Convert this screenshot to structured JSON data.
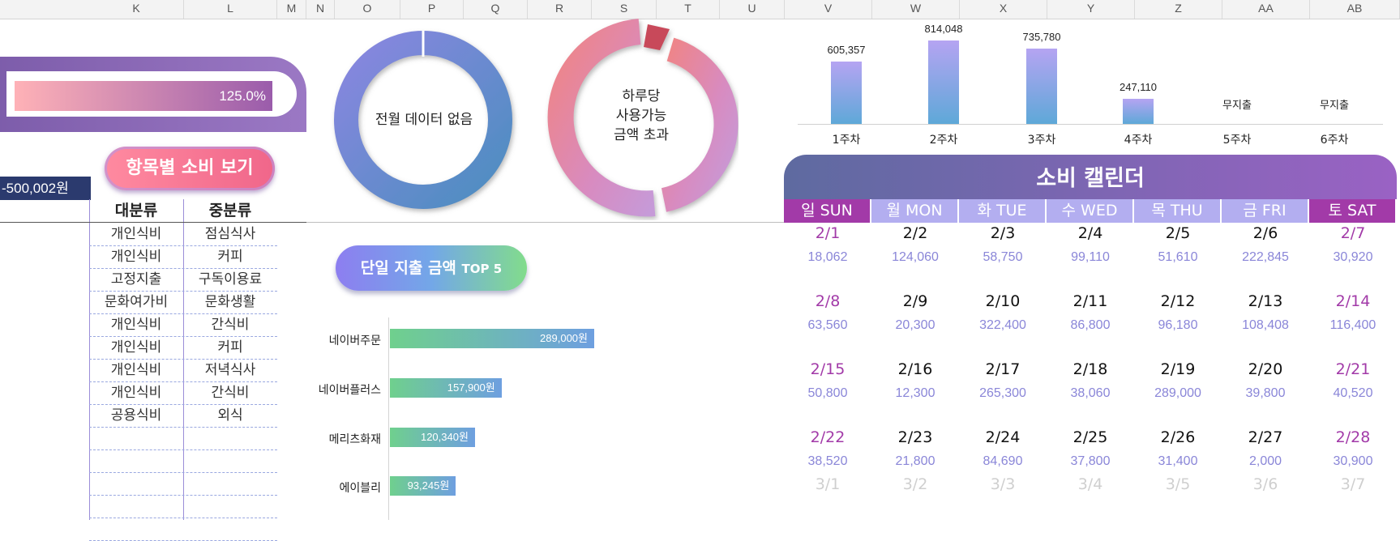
{
  "columns": [
    "K",
    "L",
    "M",
    "N",
    "O",
    "P",
    "Q",
    "R",
    "S",
    "T",
    "U",
    "V",
    "W",
    "X",
    "Y",
    "Z",
    "AA",
    "AB"
  ],
  "budget_rate": "125.0%",
  "category_button": "항목별 소비 보기",
  "remaining_amount": "-500,002원",
  "category_table": {
    "headers": [
      "대분류",
      "중분류"
    ],
    "rows": [
      [
        "개인식비",
        "점심식사"
      ],
      [
        "개인식비",
        "커피"
      ],
      [
        "고정지출",
        "구독이용료"
      ],
      [
        "문화여가비",
        "문화생활"
      ],
      [
        "개인식비",
        "간식비"
      ],
      [
        "개인식비",
        "커피"
      ],
      [
        "개인식비",
        "저녁식사"
      ],
      [
        "개인식비",
        "간식비"
      ],
      [
        "공용식비",
        "외식"
      ]
    ]
  },
  "donut_prev_month": "전월 데이터 없음",
  "donut_daily": {
    "line1": "하루당",
    "line2": "사용가능",
    "line3": "금액 초과"
  },
  "top5": {
    "title": "단일 지출 금액",
    "title_suffix": "TOP 5",
    "items": [
      {
        "name": "네이버주문",
        "amount": 289000,
        "label": "289,000원"
      },
      {
        "name": "네이버플러스",
        "amount": 157900,
        "label": "157,900원"
      },
      {
        "name": "메리츠화재",
        "amount": 120340,
        "label": "120,340원"
      },
      {
        "name": "에이블리",
        "amount": 93245,
        "label": "93,245원"
      }
    ]
  },
  "chart_data": {
    "type": "bar",
    "categories": [
      "1주차",
      "2주차",
      "3주차",
      "4주차",
      "5주차",
      "6주차"
    ],
    "values": [
      605357,
      814048,
      735780,
      247110,
      0,
      0
    ],
    "data_labels": [
      "605,357",
      "814,048",
      "735,780",
      "247,110",
      "무지출",
      "무지출"
    ],
    "ylim": [
      0,
      814048
    ]
  },
  "calendar": {
    "title": "소비 캘린더",
    "days": [
      {
        "label": "일 SUN",
        "color": "#a23aa8"
      },
      {
        "label": "월 MON",
        "color": "#b3aef0"
      },
      {
        "label": "화 TUE",
        "color": "#b3aef0"
      },
      {
        "label": "수 WED",
        "color": "#b3aef0"
      },
      {
        "label": "목 THU",
        "color": "#b3aef0"
      },
      {
        "label": "금 FRI",
        "color": "#b3aef0"
      },
      {
        "label": "토 SAT",
        "color": "#a23aa8"
      }
    ],
    "weeks": [
      [
        {
          "d": "2/1",
          "a": "18,062"
        },
        {
          "d": "2/2",
          "a": "124,060"
        },
        {
          "d": "2/3",
          "a": "58,750"
        },
        {
          "d": "2/4",
          "a": "99,110"
        },
        {
          "d": "2/5",
          "a": "51,610"
        },
        {
          "d": "2/6",
          "a": "222,845"
        },
        {
          "d": "2/7",
          "a": "30,920"
        }
      ],
      [
        {
          "d": "2/8",
          "a": "63,560"
        },
        {
          "d": "2/9",
          "a": "20,300"
        },
        {
          "d": "2/10",
          "a": "322,400"
        },
        {
          "d": "2/11",
          "a": "86,800"
        },
        {
          "d": "2/12",
          "a": "96,180"
        },
        {
          "d": "2/13",
          "a": "108,408"
        },
        {
          "d": "2/14",
          "a": "116,400"
        }
      ],
      [
        {
          "d": "2/15",
          "a": "50,800"
        },
        {
          "d": "2/16",
          "a": "12,300"
        },
        {
          "d": "2/17",
          "a": "265,300"
        },
        {
          "d": "2/18",
          "a": "38,060"
        },
        {
          "d": "2/19",
          "a": "289,000"
        },
        {
          "d": "2/20",
          "a": "39,800"
        },
        {
          "d": "2/21",
          "a": "40,520"
        }
      ],
      [
        {
          "d": "2/22",
          "a": "38,520"
        },
        {
          "d": "2/23",
          "a": "21,800"
        },
        {
          "d": "2/24",
          "a": "84,690"
        },
        {
          "d": "2/25",
          "a": "37,800"
        },
        {
          "d": "2/26",
          "a": "31,400"
        },
        {
          "d": "2/27",
          "a": "2,000"
        },
        {
          "d": "2/28",
          "a": "30,900"
        }
      ],
      [
        {
          "d": "3/1",
          "a": ""
        },
        {
          "d": "3/2",
          "a": ""
        },
        {
          "d": "3/3",
          "a": ""
        },
        {
          "d": "3/4",
          "a": ""
        },
        {
          "d": "3/5",
          "a": ""
        },
        {
          "d": "3/6",
          "a": ""
        },
        {
          "d": "3/7",
          "a": ""
        }
      ]
    ]
  }
}
